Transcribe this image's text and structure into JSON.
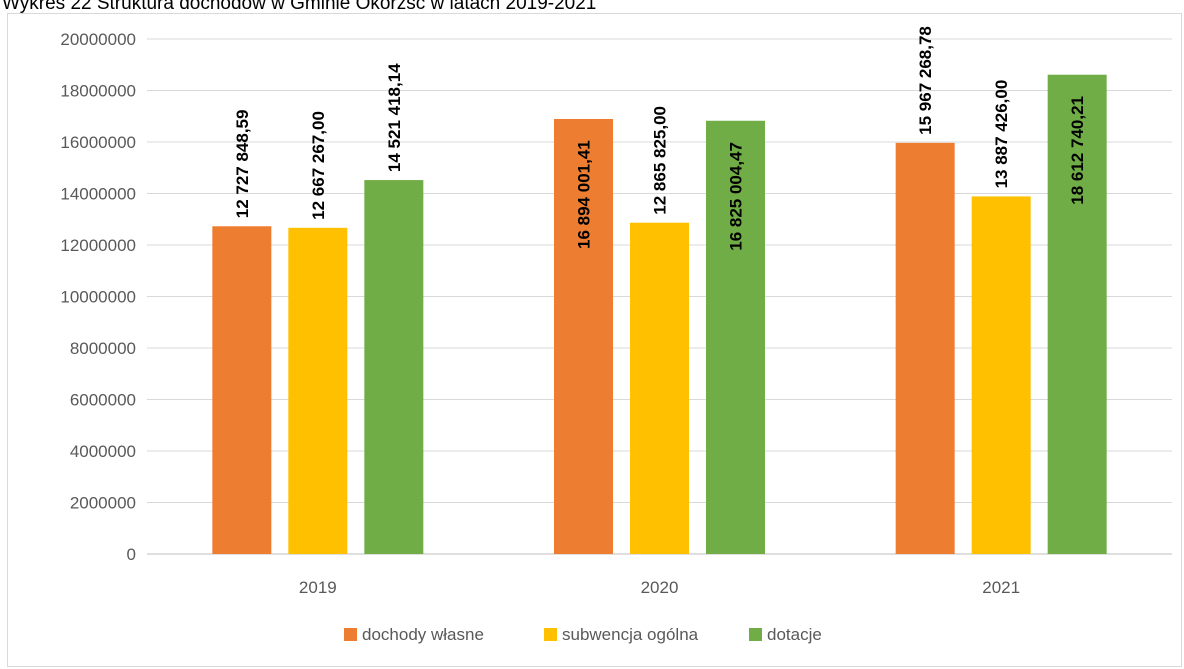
{
  "page": {
    "title": "Wykres 22 Struktura dochodów w Gminie Okorzsc w latach 2019-2021"
  },
  "chart_data": {
    "type": "bar",
    "categories": [
      "2019",
      "2020",
      "2021"
    ],
    "series": [
      {
        "name": "dochody własne",
        "color": "#ed7d31",
        "values": [
          12727848.59,
          16894001.41,
          15967268.78
        ],
        "labels": [
          "12 727 848,59",
          "16 894 001,41",
          "15 967 268,78"
        ]
      },
      {
        "name": "subwencja ogólna",
        "color": "#ffc000",
        "values": [
          12667267.0,
          12865825.0,
          13887426.0
        ],
        "labels": [
          "12 667 267,00",
          "12 865 825,00",
          "13 887 426,00"
        ]
      },
      {
        "name": "dotacje",
        "color": "#70ad47",
        "values": [
          14521418.14,
          16825004.47,
          18612740.21
        ],
        "labels": [
          "14 521 418,14",
          "16 825 004,47",
          "18 612 740,21"
        ]
      }
    ],
    "ylim": [
      0,
      20000000
    ],
    "yticks": [
      0,
      2000000,
      4000000,
      6000000,
      8000000,
      10000000,
      12000000,
      14000000,
      16000000,
      18000000,
      20000000
    ],
    "ytick_labels": [
      "0",
      "2000000",
      "4000000",
      "6000000",
      "8000000",
      "10000000",
      "12000000",
      "14000000",
      "16000000",
      "18000000",
      "20000000"
    ],
    "grid": true,
    "legend_position": "bottom"
  }
}
